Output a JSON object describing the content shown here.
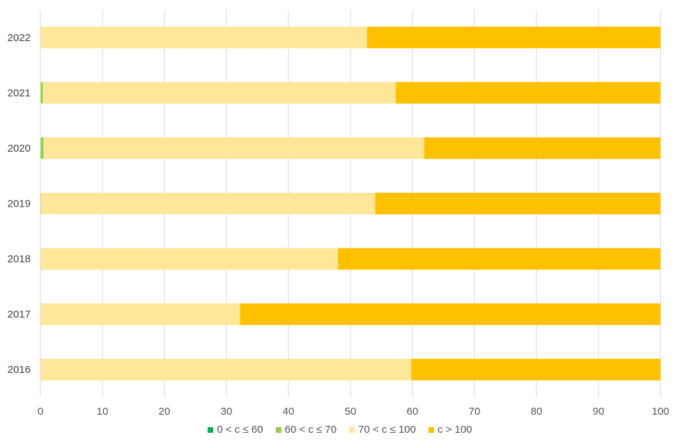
{
  "chart_data": {
    "type": "bar",
    "orientation": "horizontal",
    "stacked": true,
    "categories": [
      "2022",
      "2021",
      "2020",
      "2019",
      "2018",
      "2017",
      "2016"
    ],
    "series": [
      {
        "name": "0 < c ≤ 60",
        "color": "#00b050",
        "values": [
          0,
          0,
          0,
          0,
          0,
          0,
          0
        ]
      },
      {
        "name": "60 < c ≤ 70",
        "color": "#92d050",
        "values": [
          0,
          0.4,
          0.5,
          0.1,
          0,
          0,
          0
        ]
      },
      {
        "name": "70 < c ≤ 100",
        "color": "#ffe699",
        "values": [
          52.7,
          56.9,
          61.4,
          53.9,
          48.0,
          32.2,
          59.8
        ]
      },
      {
        "name": "c > 100",
        "color": "#ffc000",
        "values": [
          47.3,
          42.7,
          38.1,
          46.0,
          52.0,
          67.8,
          40.2
        ]
      }
    ],
    "xlim": [
      0,
      100
    ],
    "xticks": [
      "0",
      "10",
      "20",
      "30",
      "40",
      "50",
      "60",
      "70",
      "80",
      "90",
      "100"
    ],
    "title": "",
    "xlabel": "",
    "ylabel": "",
    "grid": true,
    "legend_position": "bottom"
  }
}
